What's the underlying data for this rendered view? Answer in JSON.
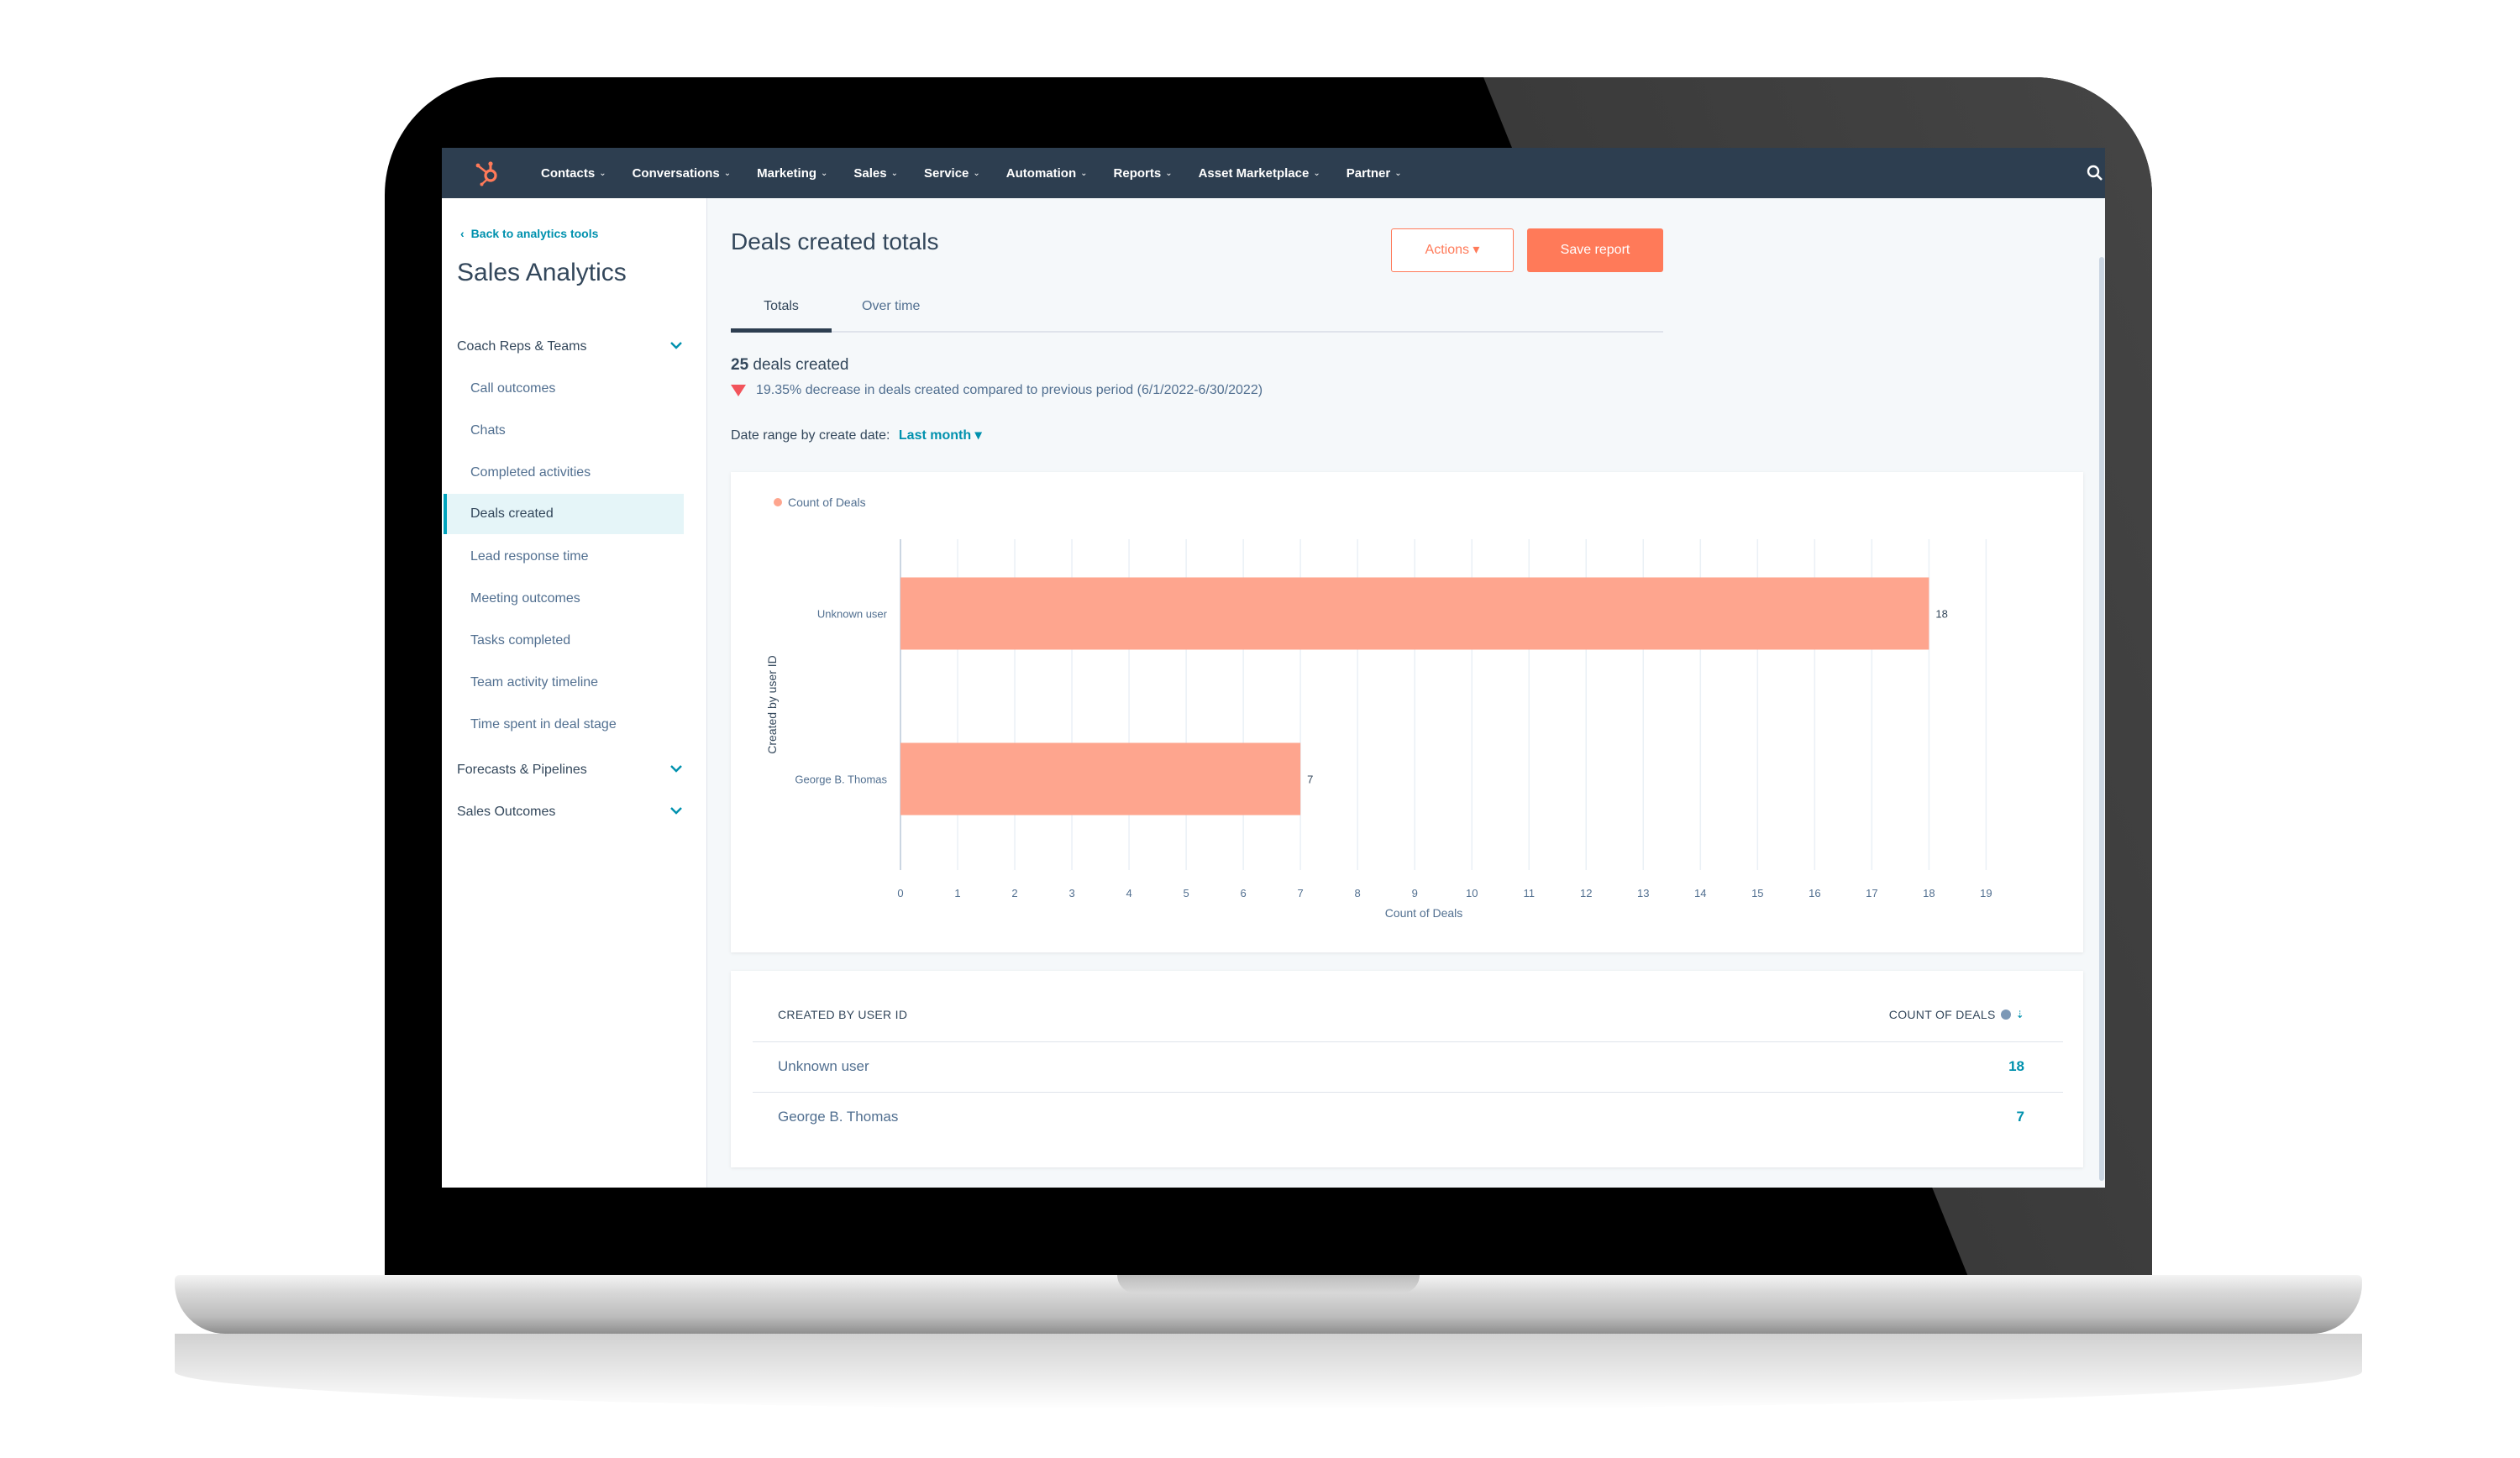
{
  "nav": {
    "items": [
      "Contacts",
      "Conversations",
      "Marketing",
      "Sales",
      "Service",
      "Automation",
      "Reports",
      "Asset Marketplace",
      "Partner"
    ]
  },
  "sidebar": {
    "back_label": "Back to analytics tools",
    "title": "Sales Analytics",
    "groups": [
      "Coach Reps & Teams",
      "Forecasts & Pipelines",
      "Sales Outcomes"
    ],
    "items": [
      "Call outcomes",
      "Chats",
      "Completed activities",
      "Deals created",
      "Lead response time",
      "Meeting outcomes",
      "Tasks completed",
      "Team activity timeline",
      "Time spent in deal stage"
    ],
    "active_item": "Deals created"
  },
  "header": {
    "title": "Deals created totals",
    "actions_label": "Actions ▾",
    "save_label": "Save report"
  },
  "tabs": [
    "Totals",
    "Over time"
  ],
  "summary": {
    "count": "25",
    "count_label": "deals created",
    "change_text": "19.35% decrease in deals created compared to previous period (6/1/2022-6/30/2022)",
    "date_range_label": "Date range by create date:",
    "date_range_value": "Last month ▾"
  },
  "chart_data": {
    "type": "bar",
    "orientation": "horizontal",
    "categories": [
      "Unknown user",
      "George B. Thomas"
    ],
    "series": [
      {
        "name": "Count of Deals",
        "values": [
          18,
          7
        ]
      }
    ],
    "xlabel": "Count of Deals",
    "ylabel": "Created by user ID",
    "xlim": [
      0,
      19
    ],
    "xticks": [
      0,
      1,
      2,
      3,
      4,
      5,
      6,
      7,
      8,
      9,
      10,
      11,
      12,
      13,
      14,
      15,
      16,
      17,
      18,
      19
    ],
    "grid": true,
    "legend": "top-left",
    "bar_color": "#fea58e"
  },
  "table": {
    "headers": [
      "CREATED BY USER ID",
      "COUNT OF DEALS"
    ],
    "rows": [
      {
        "name": "Unknown user",
        "value": "18"
      },
      {
        "name": "George B. Thomas",
        "value": "7"
      }
    ]
  },
  "colors": {
    "nav_bg": "#2d3e50",
    "accent": "#ff7a59",
    "link": "#0091ae",
    "active_bg": "#e5f5f8",
    "active_border": "#00a4bd"
  }
}
